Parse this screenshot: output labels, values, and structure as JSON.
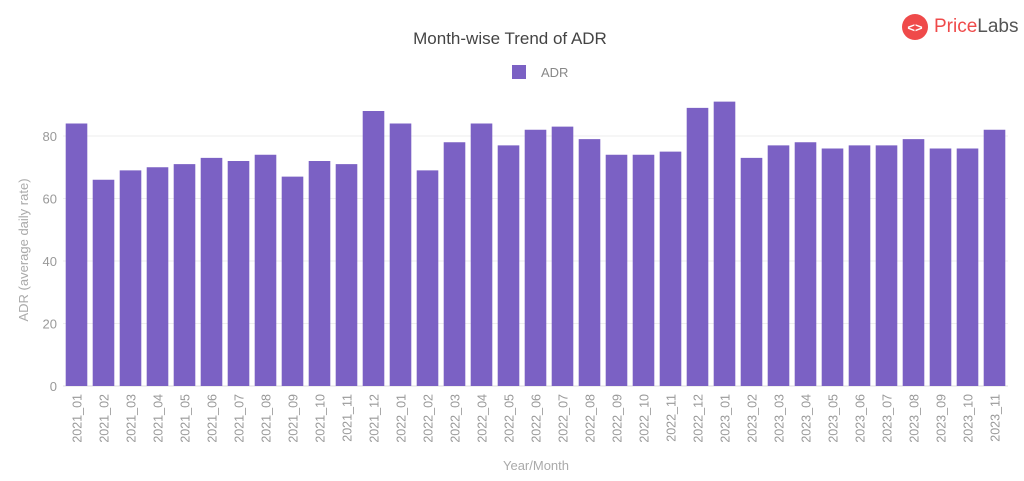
{
  "brand": {
    "part1": "Price",
    "part2": "Labs",
    "icon": "code-brackets-icon",
    "color": "#ef4a4a"
  },
  "chart_data": {
    "type": "bar",
    "title": "Month-wise Trend of ADR",
    "xlabel": "Year/Month",
    "ylabel": "ADR (average daily rate)",
    "ylim": [
      0,
      95
    ],
    "yticks": [
      0,
      20,
      40,
      60,
      80
    ],
    "grid": true,
    "legend": "top-center",
    "color": "#7b61c4",
    "categories": [
      "2021_01",
      "2021_02",
      "2021_03",
      "2021_04",
      "2021_05",
      "2021_06",
      "2021_07",
      "2021_08",
      "2021_09",
      "2021_10",
      "2021_11",
      "2021_12",
      "2022_01",
      "2022_02",
      "2022_03",
      "2022_04",
      "2022_05",
      "2022_06",
      "2022_07",
      "2022_08",
      "2022_09",
      "2022_10",
      "2022_11",
      "2022_12",
      "2023_01",
      "2023_02",
      "2023_03",
      "2023_04",
      "2023_05",
      "2023_06",
      "2023_07",
      "2023_08",
      "2023_09",
      "2023_10",
      "2023_11"
    ],
    "series": [
      {
        "name": "ADR",
        "values": [
          84,
          66,
          69,
          70,
          71,
          73,
          72,
          74,
          67,
          72,
          71,
          88,
          84,
          69,
          78,
          84,
          77,
          82,
          83,
          79,
          74,
          74,
          75,
          89,
          91,
          73,
          77,
          78,
          76,
          77,
          77,
          79,
          76,
          76,
          82
        ]
      }
    ]
  }
}
